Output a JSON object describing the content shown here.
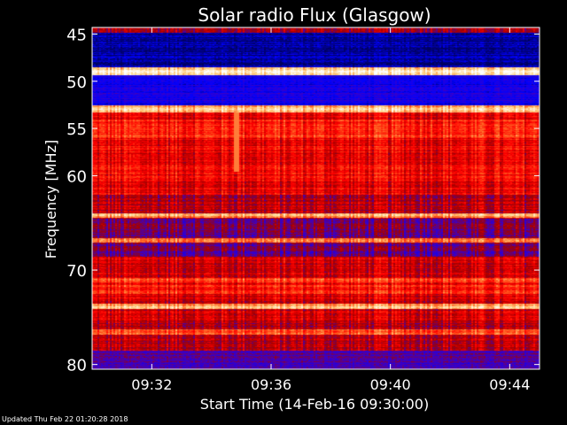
{
  "chart_data": {
    "type": "heatmap",
    "title": "Solar radio Flux (Glasgow)",
    "xlabel": "Start Time (14-Feb-16 09:30:00)",
    "ylabel": "Frequency [MHz]",
    "x_range_minutes": [
      0,
      15
    ],
    "x_ticks": [
      {
        "minute": 2,
        "label": "09:32"
      },
      {
        "minute": 6,
        "label": "09:36"
      },
      {
        "minute": 10,
        "label": "09:40"
      },
      {
        "minute": 14,
        "label": "09:44"
      }
    ],
    "ylim": [
      44.3,
      80.5
    ],
    "y_ticks": [
      {
        "value": 45,
        "label": "45"
      },
      {
        "value": 50,
        "label": "50"
      },
      {
        "value": 55,
        "label": "55"
      },
      {
        "value": 60,
        "label": "60"
      },
      {
        "value": 70,
        "label": "70"
      },
      {
        "value": 80,
        "label": "80"
      }
    ],
    "colormap": [
      "#000060",
      "#0000ff",
      "#4000c0",
      "#a00000",
      "#ff0000",
      "#ff6020",
      "#ffd080",
      "#ffffff"
    ],
    "intensity_bands": [
      {
        "from": 44.3,
        "to": 44.8,
        "level": 0.45
      },
      {
        "from": 44.8,
        "to": 48.5,
        "level": 0.05
      },
      {
        "from": 48.5,
        "to": 49.3,
        "level": 0.85
      },
      {
        "from": 49.3,
        "to": 52.5,
        "level": 0.18
      },
      {
        "from": 52.5,
        "to": 53.0,
        "level": 0.8
      },
      {
        "from": 53.0,
        "to": 54.0,
        "level": 0.55
      },
      {
        "from": 54.0,
        "to": 56.0,
        "level": 0.62
      },
      {
        "from": 56.0,
        "to": 62.0,
        "level": 0.55
      },
      {
        "from": 62.0,
        "to": 64.5,
        "level": 0.45
      },
      {
        "from": 64.5,
        "to": 65.5,
        "level": 0.35
      },
      {
        "from": 65.5,
        "to": 68.5,
        "level": 0.35
      },
      {
        "from": 68.5,
        "to": 71.5,
        "level": 0.5
      },
      {
        "from": 71.5,
        "to": 72.5,
        "level": 0.6
      },
      {
        "from": 72.5,
        "to": 75.5,
        "level": 0.5
      },
      {
        "from": 75.5,
        "to": 78.5,
        "level": 0.45
      },
      {
        "from": 78.5,
        "to": 80.5,
        "level": 0.3
      }
    ],
    "highlight_lines": [
      {
        "freq": 49.0,
        "level": 0.95
      },
      {
        "freq": 53.0,
        "level": 0.85
      },
      {
        "freq": 64.2,
        "level": 0.8
      },
      {
        "freq": 66.8,
        "level": 0.75
      },
      {
        "freq": 71.0,
        "level": 0.7
      },
      {
        "freq": 73.8,
        "level": 0.82
      },
      {
        "freq": 76.5,
        "level": 0.7
      }
    ],
    "events": [
      {
        "minute": 4.8,
        "freq_from": 52.5,
        "freq_to": 59.5,
        "level": 0.75
      }
    ]
  },
  "footer": {
    "updated": "Updated Thu Feb 22 01:20:28 2018"
  },
  "colors": {
    "background": "#000000",
    "text": "#ffffff",
    "axes": "#ffffff"
  }
}
